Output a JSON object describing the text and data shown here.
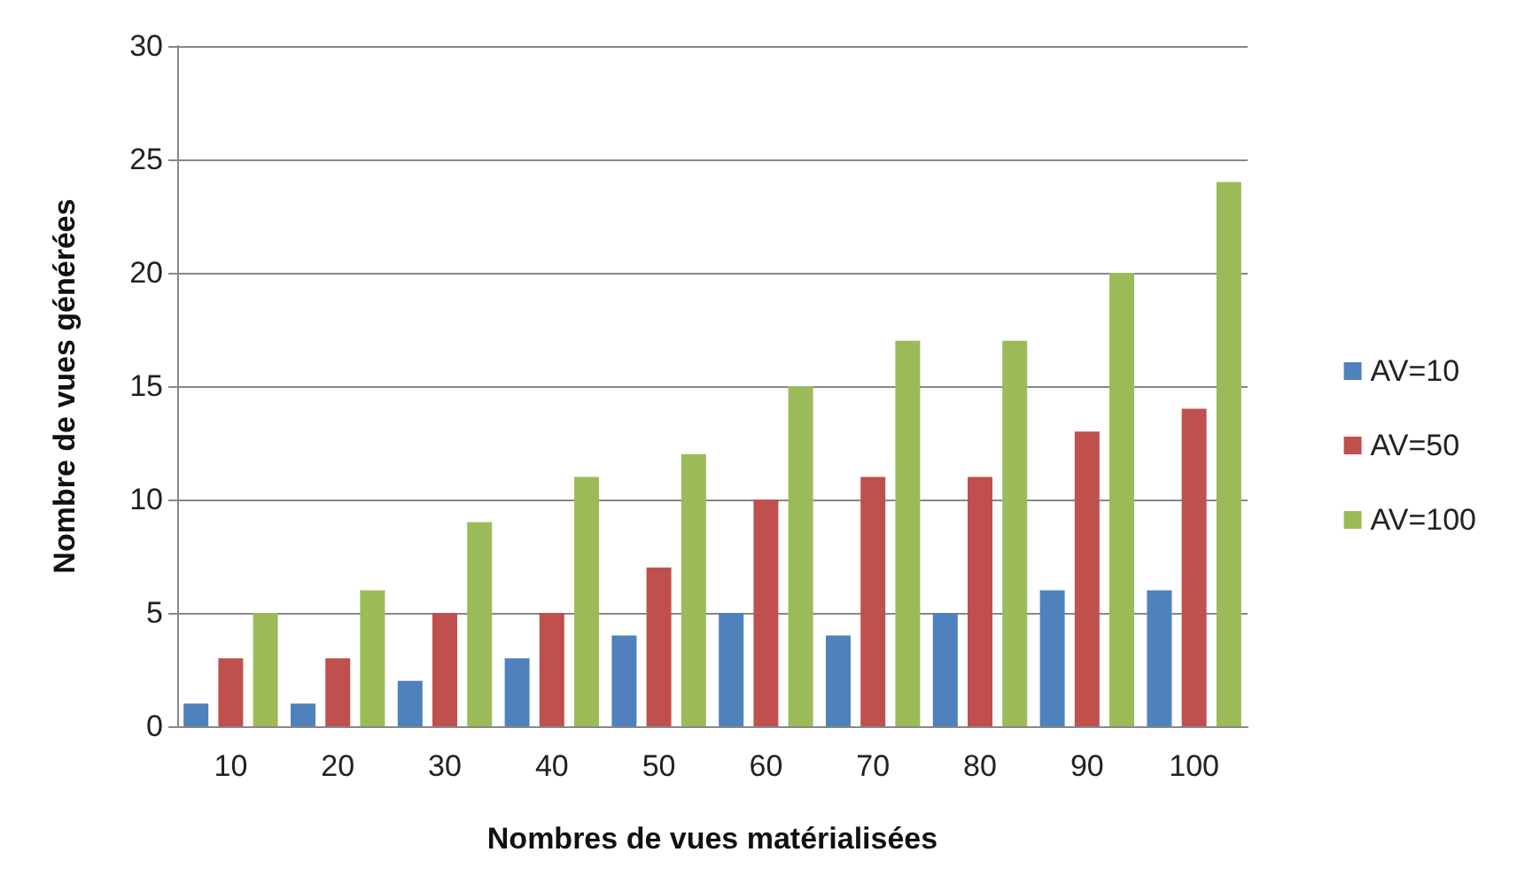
{
  "chart_data": {
    "type": "bar",
    "xlabel": "Nombres de vues matérialisées",
    "ylabel": "Nombre de vues générées",
    "categories": [
      "10",
      "20",
      "30",
      "40",
      "50",
      "60",
      "70",
      "80",
      "90",
      "100"
    ],
    "series": [
      {
        "name": "AV=10",
        "color": "#4f81bd",
        "values": [
          1,
          1,
          2,
          3,
          4,
          5,
          4,
          5,
          6,
          6
        ]
      },
      {
        "name": "AV=50",
        "color": "#c0504d",
        "values": [
          3,
          3,
          5,
          5,
          7,
          10,
          11,
          11,
          13,
          14
        ]
      },
      {
        "name": "AV=100",
        "color": "#9bbb59",
        "values": [
          5,
          6,
          9,
          11,
          12,
          15,
          17,
          17,
          20,
          24
        ]
      }
    ],
    "ylim": [
      0,
      30
    ],
    "yticks": [
      0,
      5,
      10,
      15,
      20,
      25,
      30
    ],
    "grid": "y",
    "legend": "right"
  }
}
